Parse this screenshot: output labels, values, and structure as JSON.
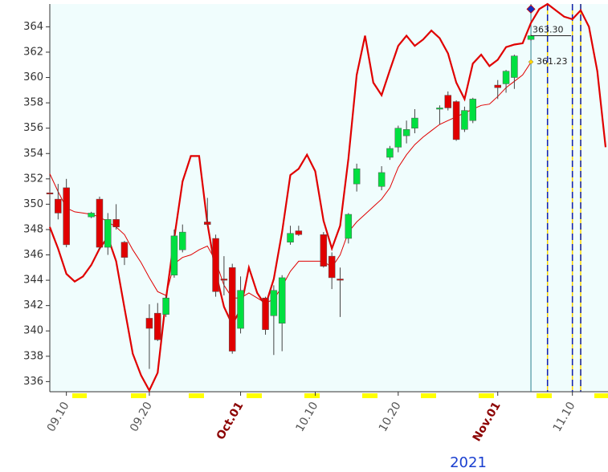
{
  "chart_data": {
    "type": "candlestick",
    "year_label": "2021",
    "xlim": [
      "2021-09-08",
      "2021-11-14"
    ],
    "ylim": [
      335.2,
      365.8
    ],
    "yticks": [
      336,
      338,
      340,
      342,
      344,
      346,
      348,
      350,
      352,
      354,
      356,
      358,
      360,
      362,
      364
    ],
    "xticks": [
      {
        "value": "2021-09-10",
        "label": "09.10"
      },
      {
        "value": "2021-09-20",
        "label": "09.20"
      },
      {
        "value": "2021-10-01",
        "label": "Oct.01"
      },
      {
        "value": "2021-10-10",
        "label": "10.10"
      },
      {
        "value": "2021-10-20",
        "label": "10.20"
      },
      {
        "value": "2021-11-01",
        "label": "Nov.01"
      },
      {
        "value": "2021-11-10",
        "label": "11.10"
      }
    ],
    "up_color": "#00e040",
    "down_color": "#e00000",
    "background": "#f0fdfd",
    "candles": {
      "x": [
        "2021-09-08",
        "2021-09-09",
        "2021-09-10",
        "2021-09-13",
        "2021-09-14",
        "2021-09-15",
        "2021-09-16",
        "2021-09-17",
        "2021-09-20",
        "2021-09-21",
        "2021-09-22",
        "2021-09-23",
        "2021-09-24",
        "2021-09-27",
        "2021-09-28",
        "2021-09-29",
        "2021-09-30",
        "2021-10-01",
        "2021-10-04",
        "2021-10-05",
        "2021-10-06",
        "2021-10-07",
        "2021-10-08",
        "2021-10-11",
        "2021-10-12",
        "2021-10-13",
        "2021-10-14",
        "2021-10-15",
        "2021-10-18",
        "2021-10-19",
        "2021-10-20",
        "2021-10-21",
        "2021-10-22",
        "2021-10-25",
        "2021-10-26",
        "2021-10-27",
        "2021-10-28",
        "2021-10-29",
        "2021-11-01",
        "2021-11-02",
        "2021-11-03",
        "2021-11-05"
      ],
      "open": [
        350.9,
        350.4,
        351.3,
        349.0,
        350.4,
        346.6,
        348.8,
        347.0,
        341.0,
        341.4,
        341.3,
        344.4,
        346.4,
        348.6,
        347.3,
        344.1,
        345.0,
        340.2,
        342.6,
        341.2,
        340.6,
        347.0,
        347.9,
        347.6,
        345.9,
        344.1,
        347.3,
        351.6,
        351.4,
        353.7,
        354.5,
        355.4,
        356.0,
        357.5,
        358.6,
        358.1,
        355.9,
        356.6,
        359.4,
        359.5,
        360.0,
        363.0
      ],
      "high": [
        351.0,
        351.6,
        352.0,
        349.4,
        350.6,
        349.3,
        350.0,
        347.1,
        342.1,
        342.2,
        342.8,
        348.0,
        348.4,
        350.5,
        347.6,
        345.9,
        345.3,
        344.3,
        342.7,
        343.6,
        344.4,
        348.3,
        348.3,
        347.8,
        346.2,
        345.0,
        349.3,
        353.2,
        353.0,
        354.6,
        356.2,
        356.6,
        357.5,
        357.8,
        358.9,
        358.2,
        357.7,
        358.4,
        359.8,
        360.6,
        361.8,
        363.4
      ],
      "low": [
        350.7,
        348.8,
        346.6,
        348.9,
        346.4,
        346.0,
        348.0,
        345.2,
        337.0,
        339.2,
        341.1,
        344.2,
        346.2,
        348.3,
        342.7,
        342.8,
        338.2,
        339.8,
        339.7,
        338.1,
        338.4,
        346.8,
        347.5,
        345.0,
        343.3,
        341.1,
        346.9,
        351.0,
        351.1,
        353.5,
        354.1,
        354.8,
        355.6,
        356.3,
        357.4,
        355.0,
        355.7,
        356.4,
        358.3,
        358.8,
        359.1,
        362.9
      ],
      "close": [
        350.8,
        349.3,
        346.8,
        349.3,
        346.6,
        348.8,
        348.2,
        345.8,
        340.2,
        339.3,
        342.6,
        347.5,
        347.8,
        348.4,
        343.1,
        344.0,
        338.4,
        343.2,
        340.1,
        343.2,
        344.2,
        347.7,
        347.6,
        345.1,
        344.2,
        344.0,
        349.2,
        352.8,
        352.5,
        354.4,
        356.0,
        355.9,
        356.8,
        357.6,
        357.6,
        355.1,
        357.4,
        358.3,
        359.2,
        360.5,
        361.7,
        363.3
      ]
    },
    "lines": {
      "x": [
        "2021-09-08",
        "2021-09-09",
        "2021-09-10",
        "2021-09-11",
        "2021-09-12",
        "2021-09-13",
        "2021-09-14",
        "2021-09-15",
        "2021-09-16",
        "2021-09-17",
        "2021-09-18",
        "2021-09-19",
        "2021-09-20",
        "2021-09-21",
        "2021-09-22",
        "2021-09-23",
        "2021-09-24",
        "2021-09-25",
        "2021-09-26",
        "2021-09-27",
        "2021-09-28",
        "2021-09-29",
        "2021-09-30",
        "2021-10-01",
        "2021-10-02",
        "2021-10-03",
        "2021-10-04",
        "2021-10-05",
        "2021-10-06",
        "2021-10-07",
        "2021-10-08",
        "2021-10-09",
        "2021-10-10",
        "2021-10-11",
        "2021-10-12",
        "2021-10-13",
        "2021-10-14",
        "2021-10-15",
        "2021-10-16",
        "2021-10-17",
        "2021-10-18",
        "2021-10-19",
        "2021-10-20",
        "2021-10-21",
        "2021-10-22",
        "2021-10-23",
        "2021-10-24",
        "2021-10-25",
        "2021-10-26",
        "2021-10-27",
        "2021-10-28",
        "2021-10-29",
        "2021-10-30",
        "2021-10-31",
        "2021-11-01",
        "2021-11-02",
        "2021-11-03",
        "2021-11-04",
        "2021-11-05",
        "2021-11-06",
        "2021-11-07",
        "2021-11-08",
        "2021-11-09",
        "2021-11-10",
        "2021-11-11",
        "2021-11-12",
        "2021-11-13",
        "2021-11-14"
      ],
      "series": [
        {
          "color": "#e00000",
          "width": 2.2,
          "values": [
            348.2,
            346.5,
            344.5,
            343.9,
            344.3,
            345.2,
            346.5,
            347.4,
            345.5,
            341.8,
            338.2,
            336.5,
            335.3,
            336.7,
            342.5,
            347.3,
            351.8,
            353.8,
            353.8,
            348.5,
            344.6,
            341.9,
            340.5,
            341.7,
            345.0,
            343.0,
            342.0,
            344.1,
            347.8,
            352.3,
            352.8,
            353.9,
            352.6,
            348.7,
            346.5,
            348.3,
            353.6,
            360.2,
            363.3,
            359.6,
            358.6,
            360.6,
            362.5,
            363.3,
            362.5,
            363.0,
            363.7,
            363.1,
            361.9,
            359.6,
            358.3,
            361.1,
            361.8,
            360.9,
            361.4,
            362.4,
            362.6,
            362.7,
            364.3,
            365.4,
            365.8,
            365.3,
            364.8,
            364.6,
            365.3,
            364.0,
            360.5,
            354.5
          ]
        },
        {
          "color": "#e00000",
          "width": 1,
          "values": [
            352.4,
            351.0,
            349.7,
            349.4,
            349.3,
            349.2,
            349.0,
            348.6,
            348.2,
            347.6,
            346.4,
            345.4,
            344.2,
            343.1,
            342.8,
            345.3,
            345.8,
            346.0,
            346.4,
            346.7,
            345.5,
            343.6,
            342.6,
            342.6,
            343.0,
            342.6,
            342.2,
            342.5,
            343.5,
            344.7,
            345.5,
            345.5,
            345.5,
            345.5,
            345.0,
            346.0,
            347.8,
            348.6,
            349.2,
            349.8,
            350.4,
            351.3,
            352.9,
            353.9,
            354.7,
            355.3,
            355.8,
            356.3,
            356.6,
            356.9,
            357.2,
            357.5,
            357.8,
            357.9,
            358.5,
            359.2,
            359.7,
            360.2,
            361.2,
            null,
            null,
            null,
            null,
            null,
            null,
            null,
            null,
            null
          ]
        }
      ]
    },
    "markers": [
      {
        "x": "2021-11-05",
        "value": 363.3,
        "label": "363.30"
      },
      {
        "x": "2021-11-05",
        "value": 361.23,
        "label": "361.23"
      }
    ],
    "peak_marker": {
      "x": "2021-11-05",
      "value": 365.4
    },
    "current_line": "2021-11-05",
    "projection_lines": [
      "2021-11-07",
      "2021-11-10",
      "2021-11-11"
    ]
  }
}
